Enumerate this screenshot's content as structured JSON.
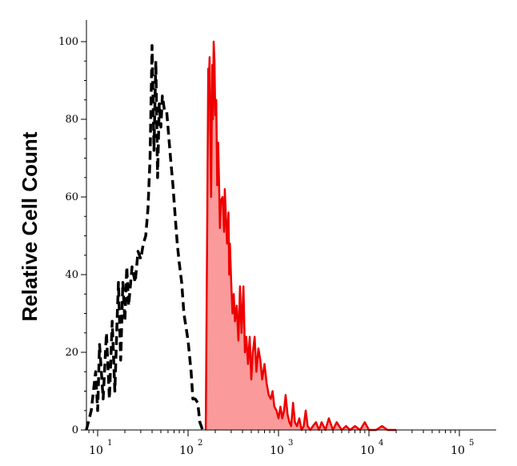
{
  "chart_data": {
    "type": "histogram",
    "title": "",
    "xlabel": "",
    "ylabel": "Relative Cell Count",
    "x_scale": "log",
    "xlim": [
      7,
      20000
    ],
    "ylim": [
      0,
      100
    ],
    "y_ticks": [
      "0",
      "20",
      "40",
      "60",
      "80",
      "100"
    ],
    "x_ticks": [
      {
        "base": "10",
        "exp": "1",
        "value": 10
      },
      {
        "base": "10",
        "exp": "2",
        "value": 100
      },
      {
        "base": "10",
        "exp": "3",
        "value": 1000
      },
      {
        "base": "10",
        "exp": "4",
        "value": 10000
      },
      {
        "base": "10",
        "exp": "5",
        "value": 100000
      }
    ],
    "grid": false,
    "legend": "none",
    "series": [
      {
        "style": "dashed",
        "color": "#000000",
        "fill": "none",
        "points": [
          [
            7.5,
            0
          ],
          [
            8.5,
            5
          ],
          [
            9.5,
            15
          ],
          [
            10,
            5
          ],
          [
            10.5,
            22
          ],
          [
            11.5,
            8
          ],
          [
            12.5,
            25
          ],
          [
            13.5,
            8
          ],
          [
            14.5,
            28
          ],
          [
            15.5,
            10
          ],
          [
            16.5,
            30
          ],
          [
            17,
            38
          ],
          [
            18,
            18
          ],
          [
            19,
            38
          ],
          [
            20,
            28
          ],
          [
            21,
            42
          ],
          [
            22,
            32
          ],
          [
            24,
            42
          ],
          [
            26,
            38
          ],
          [
            28,
            46
          ],
          [
            30,
            44
          ],
          [
            32,
            48
          ],
          [
            34,
            50
          ],
          [
            36,
            57
          ],
          [
            38,
            70
          ],
          [
            40,
            99
          ],
          [
            42,
            72
          ],
          [
            44,
            95
          ],
          [
            46,
            65
          ],
          [
            48,
            84
          ],
          [
            50,
            78
          ],
          [
            52,
            86
          ],
          [
            55,
            82
          ],
          [
            58,
            82
          ],
          [
            60,
            78
          ],
          [
            64,
            70
          ],
          [
            68,
            63
          ],
          [
            72,
            55
          ],
          [
            76,
            48
          ],
          [
            80,
            43
          ],
          [
            85,
            38
          ],
          [
            90,
            30
          ],
          [
            100,
            23
          ],
          [
            108,
            15
          ],
          [
            113,
            8
          ],
          [
            120,
            8
          ],
          [
            128,
            7
          ],
          [
            135,
            2
          ],
          [
            145,
            0
          ]
        ]
      },
      {
        "style": "solid",
        "color": "#ee0000",
        "fill": "#fa9a9a",
        "points": [
          [
            157,
            0
          ],
          [
            163,
            55
          ],
          [
            167,
            93
          ],
          [
            170,
            90
          ],
          [
            173,
            96
          ],
          [
            176,
            78
          ],
          [
            180,
            60
          ],
          [
            185,
            94
          ],
          [
            188,
            80
          ],
          [
            192,
            100
          ],
          [
            196,
            95
          ],
          [
            200,
            81
          ],
          [
            205,
            85
          ],
          [
            210,
            63
          ],
          [
            215,
            74
          ],
          [
            220,
            64
          ],
          [
            225,
            52
          ],
          [
            230,
            59
          ],
          [
            240,
            60
          ],
          [
            245,
            56
          ],
          [
            250,
            51
          ],
          [
            255,
            62
          ],
          [
            262,
            55
          ],
          [
            270,
            48
          ],
          [
            280,
            56
          ],
          [
            285,
            40
          ],
          [
            290,
            48
          ],
          [
            300,
            38
          ],
          [
            310,
            30
          ],
          [
            320,
            35
          ],
          [
            330,
            28
          ],
          [
            345,
            32
          ],
          [
            360,
            23
          ],
          [
            375,
            37
          ],
          [
            390,
            25
          ],
          [
            410,
            37
          ],
          [
            425,
            20
          ],
          [
            440,
            24
          ],
          [
            460,
            17
          ],
          [
            480,
            24
          ],
          [
            500,
            13
          ],
          [
            520,
            20
          ],
          [
            545,
            24
          ],
          [
            570,
            15
          ],
          [
            600,
            21
          ],
          [
            630,
            18
          ],
          [
            660,
            13
          ],
          [
            700,
            17
          ],
          [
            740,
            12
          ],
          [
            780,
            9
          ],
          [
            820,
            8
          ],
          [
            860,
            10
          ],
          [
            900,
            6
          ],
          [
            950,
            5
          ],
          [
            1000,
            3
          ],
          [
            1050,
            6
          ],
          [
            1100,
            3
          ],
          [
            1150,
            5
          ],
          [
            1200,
            9
          ],
          [
            1260,
            4
          ],
          [
            1320,
            2
          ],
          [
            1380,
            1
          ],
          [
            1450,
            7
          ],
          [
            1520,
            2
          ],
          [
            1600,
            1
          ],
          [
            1700,
            3
          ],
          [
            1800,
            0
          ],
          [
            1900,
            1
          ],
          [
            2000,
            5
          ],
          [
            2100,
            1
          ],
          [
            2250,
            0
          ],
          [
            2400,
            1
          ],
          [
            2600,
            2
          ],
          [
            2800,
            0
          ],
          [
            3000,
            2
          ],
          [
            3300,
            0
          ],
          [
            3600,
            3
          ],
          [
            4000,
            0
          ],
          [
            4400,
            2
          ],
          [
            5000,
            0
          ],
          [
            5600,
            1
          ],
          [
            6200,
            0
          ],
          [
            7000,
            1
          ],
          [
            8000,
            0
          ],
          [
            9000,
            2
          ],
          [
            10000,
            0
          ],
          [
            12000,
            0
          ],
          [
            14000,
            1
          ],
          [
            16000,
            0
          ],
          [
            20000,
            0
          ]
        ]
      }
    ]
  }
}
